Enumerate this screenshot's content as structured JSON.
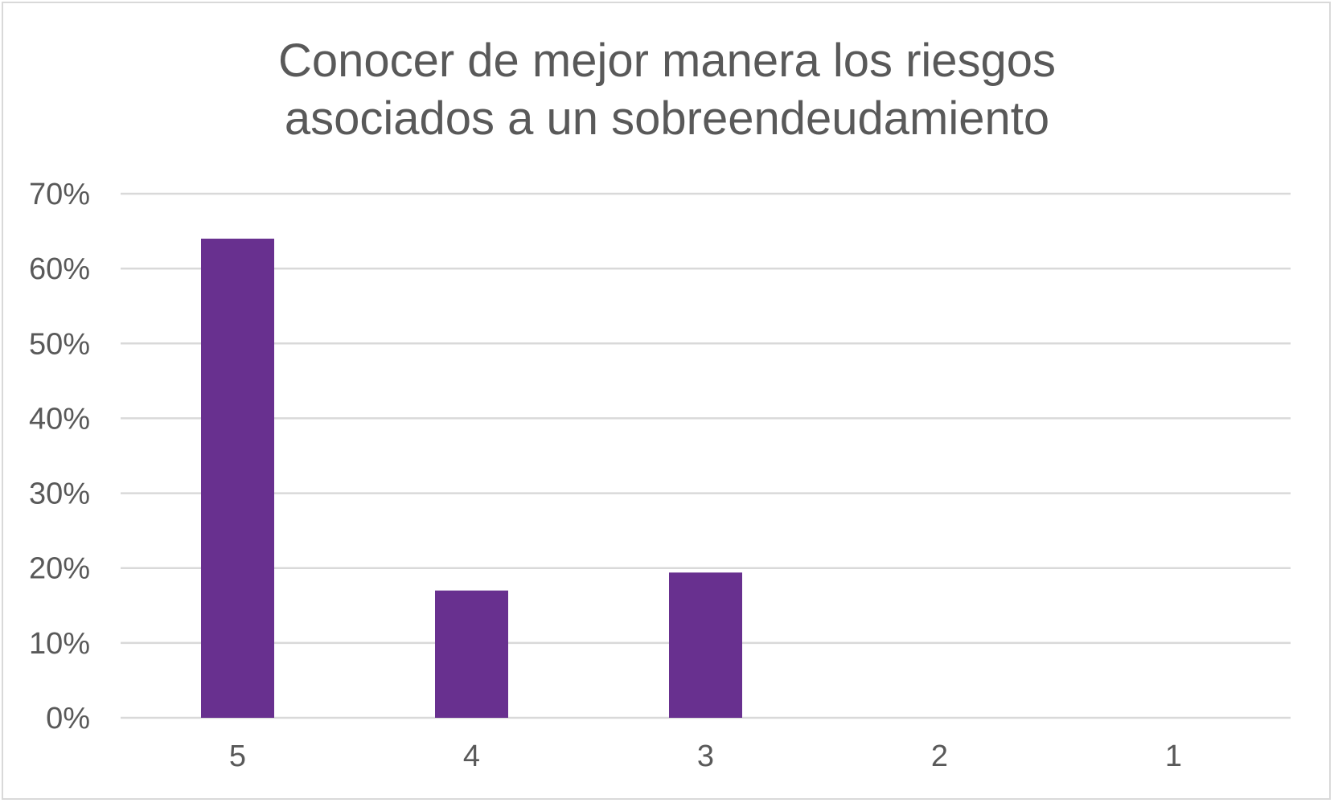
{
  "chart_data": {
    "type": "bar",
    "title_lines": [
      "Conocer de mejor manera los riesgos",
      "asociados a un sobreendeudamiento"
    ],
    "categories": [
      "5",
      "4",
      "3",
      "2",
      "1"
    ],
    "values": [
      64,
      17,
      19.4,
      0,
      0
    ],
    "ylim": [
      0,
      70
    ],
    "yticks": [
      0,
      10,
      20,
      30,
      40,
      50,
      60,
      70
    ],
    "ytick_labels": [
      "0%",
      "10%",
      "20%",
      "30%",
      "40%",
      "50%",
      "60%",
      "70%"
    ],
    "xlabel": "",
    "ylabel": "",
    "grid": true,
    "legend": "none",
    "bar_color": "#68308f",
    "grid_color": "#d9d9d9"
  }
}
